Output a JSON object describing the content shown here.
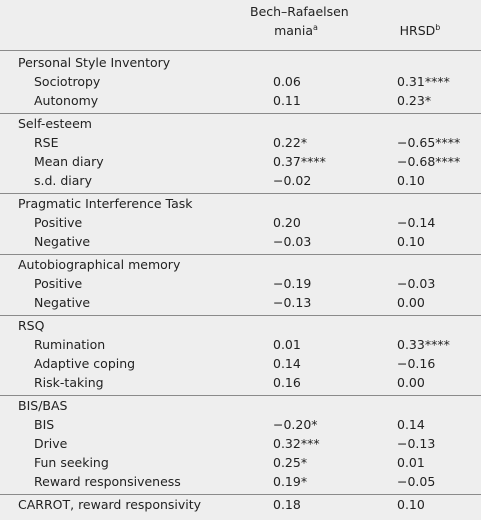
{
  "header": {
    "columns": [
      {
        "text": "Bech–Rafaelsen",
        "line2": "mania",
        "note": "a"
      },
      {
        "text": "HRSD",
        "note": "b"
      }
    ]
  },
  "groups": [
    {
      "title": "Personal Style Inventory",
      "rows": [
        [
          "Sociotropy",
          "0.06",
          "0.31****"
        ],
        [
          "Autonomy",
          "0.11",
          "0.23*"
        ]
      ]
    },
    {
      "title": "Self-esteem",
      "rows": [
        [
          "RSE",
          "0.22*",
          "−0.65****"
        ],
        [
          "Mean diary",
          "0.37****",
          "−0.68****"
        ],
        [
          "s.d. diary",
          "−0.02",
          "0.10"
        ]
      ]
    },
    {
      "title": "Pragmatic Interference Task",
      "rows": [
        [
          "Positive",
          "0.20",
          "−0.14"
        ],
        [
          "Negative",
          "−0.03",
          "0.10"
        ]
      ]
    },
    {
      "title": "Autobiographical memory",
      "rows": [
        [
          "Positive",
          "−0.19",
          "−0.03"
        ],
        [
          "Negative",
          "−0.13",
          "0.00"
        ]
      ]
    },
    {
      "title": "RSQ",
      "rows": [
        [
          "Rumination",
          "0.01",
          "0.33****"
        ],
        [
          "Adaptive coping",
          "0.14",
          "−0.16"
        ],
        [
          "Risk-taking",
          "0.16",
          "0.00"
        ]
      ]
    },
    {
      "title": "BIS/BAS",
      "rows": [
        [
          "BIS",
          "−0.20*",
          "0.14"
        ],
        [
          "Drive",
          "0.32***",
          "−0.13"
        ],
        [
          "Fun seeking",
          "0.25*",
          "0.01"
        ],
        [
          "Reward responsiveness",
          "0.19*",
          "−0.05"
        ]
      ]
    },
    {
      "title": "CARROT, reward responsivity",
      "cells": [
        "0.18",
        "0.10"
      ],
      "rows": []
    }
  ]
}
